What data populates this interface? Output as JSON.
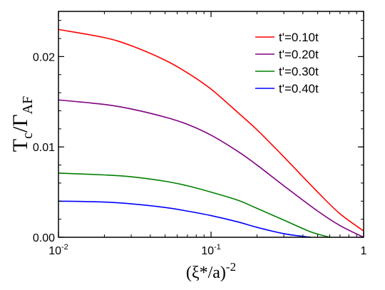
{
  "chart_data": {
    "type": "line",
    "xscale": "log",
    "xlim": [
      0.01,
      1
    ],
    "ylim": [
      0,
      0.025
    ],
    "xticks": [
      {
        "value": 0.01,
        "mant": "10",
        "exp": "-2"
      },
      {
        "value": 0.1,
        "mant": "10",
        "exp": "-1"
      },
      {
        "value": 1,
        "mant": "1",
        "exp": ""
      }
    ],
    "yticks": [
      {
        "value": 0.0,
        "label": "0.00"
      },
      {
        "value": 0.01,
        "label": "0.01"
      },
      {
        "value": 0.02,
        "label": "0.02"
      }
    ],
    "xlabel": {
      "main": "(ξ*/a)",
      "exp": "-2"
    },
    "ylabel": {
      "t": "T",
      "tsub": "c",
      "slash": "/",
      "g": "Γ",
      "gsub": "AF"
    },
    "legend_position": "top-right",
    "grid": false,
    "series": [
      {
        "name": "t'=0.10t",
        "color": "#ff0000",
        "x": [
          0.01,
          0.02,
          0.03,
          0.05,
          0.07,
          0.1,
          0.15,
          0.2,
          0.3,
          0.5,
          0.7,
          1.0
        ],
        "y": [
          0.023,
          0.0221,
          0.0212,
          0.0196,
          0.0182,
          0.0164,
          0.0138,
          0.0119,
          0.0089,
          0.005,
          0.0026,
          0.0007
        ]
      },
      {
        "name": "t'=0.20t",
        "color": "#800080",
        "x": [
          0.01,
          0.02,
          0.03,
          0.05,
          0.07,
          0.1,
          0.15,
          0.2,
          0.3,
          0.5,
          0.7,
          1.0
        ],
        "y": [
          0.0152,
          0.0147,
          0.0142,
          0.0133,
          0.0125,
          0.0113,
          0.0095,
          0.008,
          0.0057,
          0.0029,
          0.0013,
          0.0
        ]
      },
      {
        "name": "t'=0.30t",
        "color": "#008000",
        "x": [
          0.01,
          0.02,
          0.03,
          0.05,
          0.07,
          0.1,
          0.15,
          0.2,
          0.3,
          0.45,
          0.6
        ],
        "y": [
          0.0071,
          0.0069,
          0.0067,
          0.0062,
          0.0057,
          0.005,
          0.0041,
          0.0032,
          0.0019,
          0.0006,
          0.0
        ]
      },
      {
        "name": "t'=0.40t",
        "color": "#0000ff",
        "x": [
          0.01,
          0.02,
          0.03,
          0.05,
          0.07,
          0.1,
          0.15,
          0.2,
          0.3,
          0.4,
          0.45
        ],
        "y": [
          0.004,
          0.0039,
          0.0037,
          0.0033,
          0.0029,
          0.0024,
          0.0017,
          0.0011,
          0.0004,
          0.0001,
          0.0
        ]
      }
    ]
  }
}
